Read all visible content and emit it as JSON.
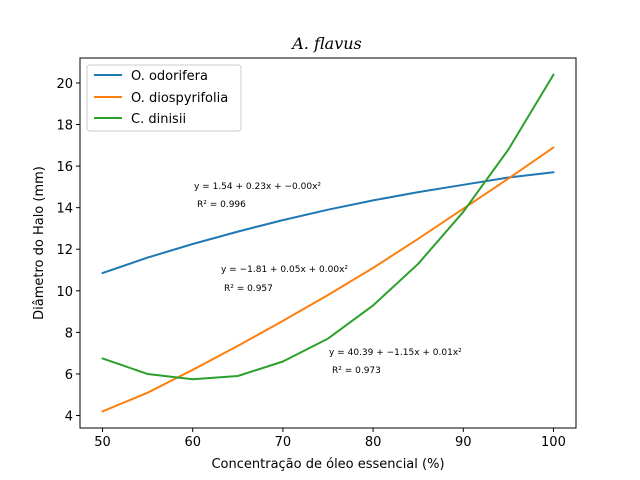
{
  "chart_data": {
    "type": "line",
    "title": "A. flavus",
    "xlabel": "Concentração de óleo essencial (%)",
    "ylabel": "Diâmetro do Halo (mm)",
    "xlim": [
      47.5,
      102.5
    ],
    "ylim": [
      3.4,
      21.2
    ],
    "xticks": [
      50,
      60,
      70,
      80,
      90,
      100
    ],
    "yticks": [
      4,
      6,
      8,
      10,
      12,
      14,
      16,
      18,
      20
    ],
    "grid": false,
    "legend_position": "upper-left",
    "series": [
      {
        "name": "O. odorifera",
        "color": "#1f77b4",
        "x": [
          50,
          55,
          60,
          65,
          70,
          75,
          80,
          85,
          90,
          95,
          100
        ],
        "y": [
          10.85,
          11.6,
          12.25,
          12.85,
          13.4,
          13.9,
          14.35,
          14.75,
          15.1,
          15.45,
          15.7
        ]
      },
      {
        "name": "O. diospyrifolia",
        "color": "#ff7f0e",
        "x": [
          50,
          55,
          60,
          65,
          70,
          75,
          80,
          85,
          90,
          95,
          100
        ],
        "y": [
          4.2,
          5.1,
          6.2,
          7.35,
          8.55,
          9.8,
          11.1,
          12.5,
          13.95,
          15.4,
          16.9
        ]
      },
      {
        "name": "C. dinisii",
        "color": "#2ca02c",
        "x": [
          50,
          55,
          60,
          65,
          70,
          75,
          80,
          85,
          90,
          95,
          100
        ],
        "y": [
          6.75,
          6.0,
          5.75,
          5.9,
          6.6,
          7.7,
          9.3,
          11.3,
          13.8,
          16.8,
          20.4
        ]
      }
    ],
    "annotations": [
      {
        "series": "O. odorifera",
        "equation": "y = 1.54 + 0.23x + −0.00x²",
        "r2": "R² = 0.996",
        "color": "#0000cd"
      },
      {
        "series": "O. diospyrifolia",
        "equation": "y = −1.81 + 0.05x + 0.00x²",
        "r2": "R² = 0.957",
        "color": "#ffa500"
      },
      {
        "series": "C. dinisii",
        "equation": "y = 40.39 + −1.15x + 0.01x²",
        "r2": "R² = 0.973",
        "color": "#008000"
      }
    ]
  }
}
